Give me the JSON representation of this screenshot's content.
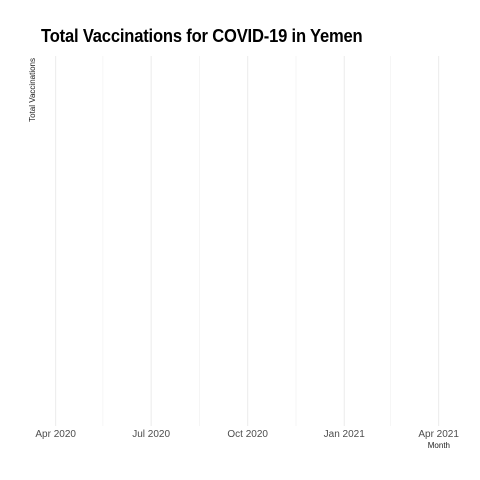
{
  "chart_data": {
    "type": "line",
    "title": "Total Vaccinations for COVID-19 in Yemen",
    "xlabel": "Month",
    "ylabel": "Total Vaccinations",
    "x_ticks": [
      {
        "label": "Apr 2020",
        "date": "2020-04-01",
        "major": true
      },
      {
        "label": "",
        "date": "2020-05-16",
        "major": false
      },
      {
        "label": "Jul 2020",
        "date": "2020-07-01",
        "major": true
      },
      {
        "label": "",
        "date": "2020-08-16",
        "major": false
      },
      {
        "label": "Oct 2020",
        "date": "2020-10-01",
        "major": true
      },
      {
        "label": "",
        "date": "2020-11-16",
        "major": false
      },
      {
        "label": "Jan 2021",
        "date": "2021-01-01",
        "major": true
      },
      {
        "label": "",
        "date": "2021-02-14",
        "major": false
      },
      {
        "label": "Apr 2021",
        "date": "2021-04-01",
        "major": true
      }
    ],
    "xlim": [
      "2020-03-18",
      "2021-04-08"
    ],
    "series": [
      {
        "values": []
      }
    ],
    "grid": true,
    "legend": "none"
  }
}
